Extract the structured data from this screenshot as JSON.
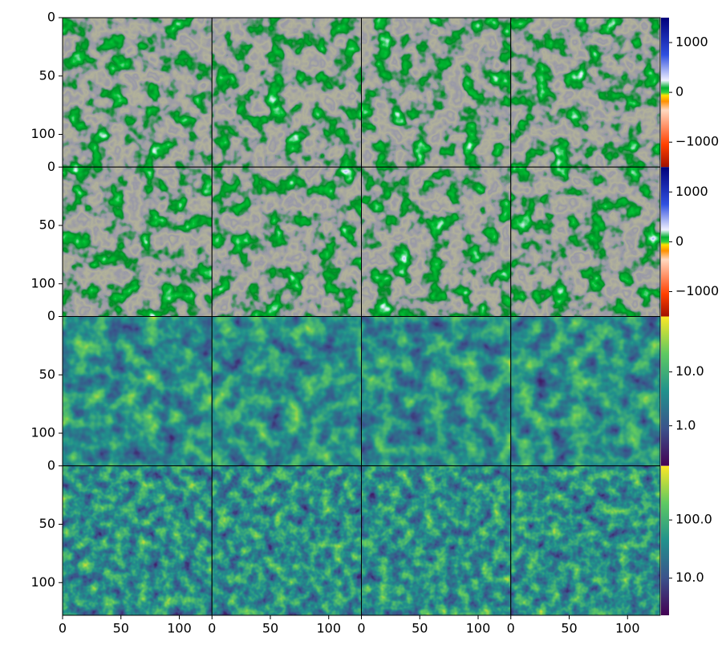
{
  "chart_data": [
    {
      "type": "heatmap",
      "colormap": "diverging",
      "log": false,
      "xlim": [
        0,
        128
      ],
      "ylim": [
        128,
        0
      ],
      "yticks": [
        0,
        50,
        100
      ],
      "clim": [
        -1500,
        1500
      ],
      "cticks": [
        {
          "value": 1000,
          "label": "1000"
        },
        0,
        {
          "value": -1000,
          "label": "−1000"
        }
      ]
    },
    {
      "type": "heatmap",
      "colormap": "diverging",
      "log": false,
      "xlim": [
        0,
        128
      ],
      "ylim": [
        128,
        0
      ],
      "yticks": [
        0,
        50,
        100
      ],
      "clim": [
        -1500,
        1500
      ],
      "cticks": [
        {
          "value": 1000,
          "label": "1000"
        },
        0,
        {
          "value": -1000,
          "label": "−1000"
        }
      ]
    },
    {
      "type": "heatmap",
      "colormap": "viridis",
      "log": true,
      "xlim": [
        0,
        128
      ],
      "ylim": [
        128,
        0
      ],
      "yticks": [
        0,
        50,
        100
      ],
      "clim": [
        0.18,
        107
      ],
      "cticks": [
        {
          "value": 10,
          "label": "10.0"
        },
        {
          "value": 1,
          "label": "1.0"
        }
      ]
    },
    {
      "type": "heatmap",
      "colormap": "viridis",
      "log": true,
      "xlim": [
        0,
        128
      ],
      "ylim": [
        128,
        0
      ],
      "yticks": [
        0,
        50,
        100
      ],
      "xticks": [
        0,
        50,
        100
      ],
      "clim": [
        2.3,
        850
      ],
      "cticks": [
        {
          "value": 100,
          "label": "100.0"
        },
        {
          "value": 10,
          "label": "10.0"
        }
      ]
    }
  ]
}
